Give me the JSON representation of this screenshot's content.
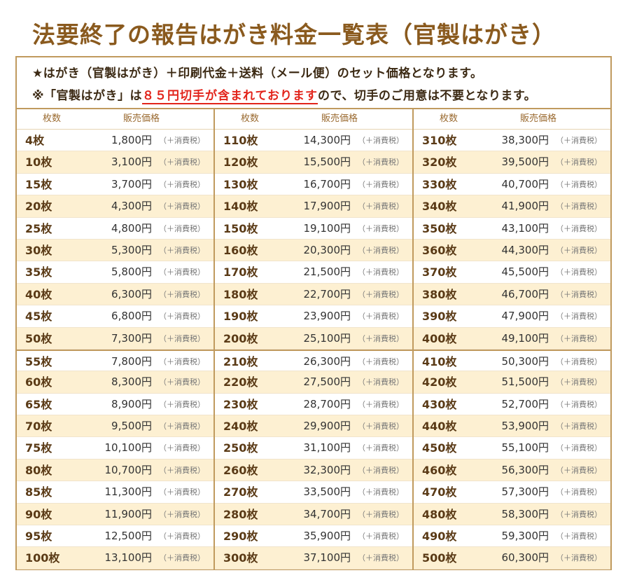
{
  "title": "法要終了の報告はがき料金一覧表（官製はがき）",
  "notice": {
    "line1": "★はがき（官製はがき）＋印刷代金＋送料（メール便）のセット価格となります。",
    "line2_prefix": "※「官製はがき」は",
    "line2_highlight": "８５円切手が含まれております",
    "line2_suffix": "ので、切手のご用意は不要となります。"
  },
  "header": {
    "qty": "枚数",
    "price": "販売価格"
  },
  "tax_label": "（＋消費税）",
  "columns": [
    [
      {
        "qty": "4枚",
        "price": "1,800円"
      },
      {
        "qty": "10枚",
        "price": "3,100円"
      },
      {
        "qty": "15枚",
        "price": "3,700円"
      },
      {
        "qty": "20枚",
        "price": "4,300円"
      },
      {
        "qty": "25枚",
        "price": "4,800円"
      },
      {
        "qty": "30枚",
        "price": "5,300円"
      },
      {
        "qty": "35枚",
        "price": "5,800円"
      },
      {
        "qty": "40枚",
        "price": "6,300円"
      },
      {
        "qty": "45枚",
        "price": "6,800円"
      },
      {
        "qty": "50枚",
        "price": "7,300円"
      },
      {
        "qty": "55枚",
        "price": "7,800円"
      },
      {
        "qty": "60枚",
        "price": "8,300円"
      },
      {
        "qty": "65枚",
        "price": "8,900円"
      },
      {
        "qty": "70枚",
        "price": "9,500円"
      },
      {
        "qty": "75枚",
        "price": "10,100円"
      },
      {
        "qty": "80枚",
        "price": "10,700円"
      },
      {
        "qty": "85枚",
        "price": "11,300円"
      },
      {
        "qty": "90枚",
        "price": "11,900円"
      },
      {
        "qty": "95枚",
        "price": "12,500円"
      },
      {
        "qty": "100枚",
        "price": "13,100円"
      }
    ],
    [
      {
        "qty": "110枚",
        "price": "14,300円"
      },
      {
        "qty": "120枚",
        "price": "15,500円"
      },
      {
        "qty": "130枚",
        "price": "16,700円"
      },
      {
        "qty": "140枚",
        "price": "17,900円"
      },
      {
        "qty": "150枚",
        "price": "19,100円"
      },
      {
        "qty": "160枚",
        "price": "20,300円"
      },
      {
        "qty": "170枚",
        "price": "21,500円"
      },
      {
        "qty": "180枚",
        "price": "22,700円"
      },
      {
        "qty": "190枚",
        "price": "23,900円"
      },
      {
        "qty": "200枚",
        "price": "25,100円"
      },
      {
        "qty": "210枚",
        "price": "26,300円"
      },
      {
        "qty": "220枚",
        "price": "27,500円"
      },
      {
        "qty": "230枚",
        "price": "28,700円"
      },
      {
        "qty": "240枚",
        "price": "29,900円"
      },
      {
        "qty": "250枚",
        "price": "31,100円"
      },
      {
        "qty": "260枚",
        "price": "32,300円"
      },
      {
        "qty": "270枚",
        "price": "33,500円"
      },
      {
        "qty": "280枚",
        "price": "34,700円"
      },
      {
        "qty": "290枚",
        "price": "35,900円"
      },
      {
        "qty": "300枚",
        "price": "37,100円"
      }
    ],
    [
      {
        "qty": "310枚",
        "price": "38,300円"
      },
      {
        "qty": "320枚",
        "price": "39,500円"
      },
      {
        "qty": "330枚",
        "price": "40,700円"
      },
      {
        "qty": "340枚",
        "price": "41,900円"
      },
      {
        "qty": "350枚",
        "price": "43,100円"
      },
      {
        "qty": "360枚",
        "price": "44,300円"
      },
      {
        "qty": "370枚",
        "price": "45,500円"
      },
      {
        "qty": "380枚",
        "price": "46,700円"
      },
      {
        "qty": "390枚",
        "price": "47,900円"
      },
      {
        "qty": "400枚",
        "price": "49,100円"
      },
      {
        "qty": "410枚",
        "price": "50,300円"
      },
      {
        "qty": "420枚",
        "price": "51,500円"
      },
      {
        "qty": "430枚",
        "price": "52,700円"
      },
      {
        "qty": "440枚",
        "price": "53,900円"
      },
      {
        "qty": "450枚",
        "price": "55,100円"
      },
      {
        "qty": "460枚",
        "price": "56,300円"
      },
      {
        "qty": "470枚",
        "price": "57,300円"
      },
      {
        "qty": "480枚",
        "price": "58,300円"
      },
      {
        "qty": "490枚",
        "price": "59,300円"
      },
      {
        "qty": "500枚",
        "price": "60,300円"
      }
    ]
  ],
  "colors": {
    "title": "#8a5a1e",
    "border": "#c09a5e",
    "row_alt": "#fdf0d2",
    "highlight": "#e2241b"
  }
}
